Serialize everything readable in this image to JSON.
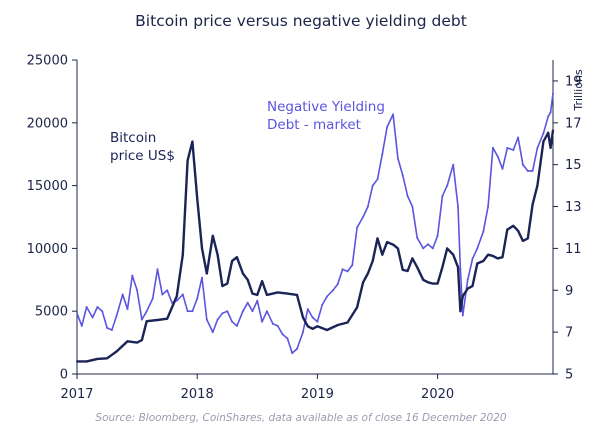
{
  "chart_data": {
    "type": "line",
    "title": "Bitcoin price versus negative yielding debt",
    "source": "Source: Bloomberg, CoinShares, data available as of close 16 December 2020",
    "x_ticks": [
      "2017",
      "2018",
      "2019",
      "2020"
    ],
    "x_range": [
      2017.0,
      2020.96
    ],
    "left_axis": {
      "ticks": [
        "0",
        "5000",
        "10000",
        "15000",
        "20000",
        "25000"
      ],
      "range": [
        0,
        25000
      ]
    },
    "right_axis": {
      "unit_label": "Trillions",
      "ticks": [
        "5",
        "7",
        "9",
        "11",
        "13",
        "15",
        "17",
        "19"
      ],
      "range": [
        5,
        20
      ]
    },
    "colors": {
      "bitcoin": "#1b2456",
      "negative_yielding_debt": "#5b55e0",
      "axis": "#1c2448"
    },
    "series": [
      {
        "key": "bitcoin",
        "name": "Bitcoin price US$",
        "label_lines": [
          "Bitcoin",
          "price US$"
        ],
        "axis": "left",
        "x": [
          2017.0,
          2017.08,
          2017.17,
          2017.25,
          2017.33,
          2017.42,
          2017.5,
          2017.54,
          2017.58,
          2017.67,
          2017.75,
          2017.83,
          2017.88,
          2017.92,
          2017.96,
          2018.0,
          2018.04,
          2018.08,
          2018.13,
          2018.17,
          2018.21,
          2018.25,
          2018.29,
          2018.33,
          2018.38,
          2018.42,
          2018.46,
          2018.5,
          2018.54,
          2018.58,
          2018.67,
          2018.75,
          2018.83,
          2018.88,
          2018.92,
          2018.96,
          2019.0,
          2019.08,
          2019.17,
          2019.25,
          2019.33,
          2019.38,
          2019.42,
          2019.46,
          2019.5,
          2019.54,
          2019.58,
          2019.63,
          2019.67,
          2019.71,
          2019.75,
          2019.79,
          2019.83,
          2019.88,
          2019.92,
          2019.96,
          2020.0,
          2020.04,
          2020.08,
          2020.13,
          2020.17,
          2020.19,
          2020.21,
          2020.25,
          2020.29,
          2020.33,
          2020.38,
          2020.42,
          2020.46,
          2020.5,
          2020.54,
          2020.58,
          2020.63,
          2020.67,
          2020.71,
          2020.75,
          2020.79,
          2020.83,
          2020.88,
          2020.92,
          2020.94,
          2020.96
        ],
        "values": [
          1000,
          1000,
          1200,
          1250,
          1800,
          2600,
          2500,
          2700,
          4200,
          4300,
          4400,
          6200,
          9500,
          17000,
          18500,
          14000,
          10000,
          8000,
          11000,
          9500,
          7000,
          7200,
          9000,
          9300,
          8000,
          7500,
          6400,
          6300,
          7400,
          6300,
          6500,
          6400,
          6300,
          4500,
          3800,
          3600,
          3800,
          3500,
          3900,
          4100,
          5300,
          7300,
          8000,
          9000,
          10800,
          9500,
          10500,
          10300,
          10000,
          8300,
          8200,
          9200,
          8500,
          7500,
          7300,
          7200,
          7200,
          8500,
          10000,
          9500,
          8500,
          5000,
          6200,
          6800,
          7000,
          8800,
          9000,
          9500,
          9400,
          9200,
          9300,
          11500,
          11800,
          11400,
          10600,
          10800,
          13500,
          15000,
          18500,
          19200,
          18000,
          19400
        ]
      },
      {
        "key": "negative_yielding_debt",
        "name": "Negative Yielding Debt - market",
        "label_lines": [
          "Negative Yielding",
          "Debt - market"
        ],
        "axis": "right",
        "x": [
          2017.0,
          2017.04,
          2017.08,
          2017.13,
          2017.17,
          2017.21,
          2017.25,
          2017.29,
          2017.33,
          2017.38,
          2017.42,
          2017.46,
          2017.5,
          2017.54,
          2017.58,
          2017.63,
          2017.67,
          2017.71,
          2017.75,
          2017.79,
          2017.83,
          2017.88,
          2017.92,
          2017.96,
          2018.0,
          2018.04,
          2018.08,
          2018.13,
          2018.17,
          2018.21,
          2018.25,
          2018.29,
          2018.33,
          2018.38,
          2018.42,
          2018.46,
          2018.5,
          2018.54,
          2018.58,
          2018.63,
          2018.67,
          2018.71,
          2018.75,
          2018.79,
          2018.83,
          2018.88,
          2018.92,
          2018.96,
          2019.0,
          2019.04,
          2019.08,
          2019.13,
          2019.17,
          2019.21,
          2019.25,
          2019.29,
          2019.33,
          2019.38,
          2019.42,
          2019.46,
          2019.5,
          2019.54,
          2019.58,
          2019.63,
          2019.67,
          2019.71,
          2019.75,
          2019.79,
          2019.83,
          2019.88,
          2019.92,
          2019.96,
          2020.0,
          2020.04,
          2020.08,
          2020.13,
          2020.17,
          2020.19,
          2020.21,
          2020.25,
          2020.29,
          2020.33,
          2020.38,
          2020.42,
          2020.46,
          2020.5,
          2020.54,
          2020.58,
          2020.63,
          2020.67,
          2020.71,
          2020.75,
          2020.79,
          2020.83,
          2020.88,
          2020.92,
          2020.94,
          2020.96
        ],
        "values": [
          7.9,
          7.3,
          8.2,
          7.7,
          8.2,
          8.0,
          7.2,
          7.1,
          7.8,
          8.8,
          8.1,
          9.7,
          9.0,
          7.6,
          8.0,
          8.6,
          10.0,
          8.8,
          9.0,
          8.4,
          8.5,
          8.8,
          8.0,
          8.0,
          8.6,
          9.6,
          7.6,
          7.0,
          7.6,
          7.9,
          8.0,
          7.5,
          7.3,
          8.0,
          8.4,
          8.0,
          8.5,
          7.5,
          8.0,
          7.4,
          7.3,
          6.9,
          6.7,
          6.0,
          6.2,
          7.0,
          8.1,
          7.7,
          7.5,
          8.3,
          8.7,
          9.0,
          9.3,
          10.0,
          9.9,
          10.2,
          12.0,
          12.5,
          13.0,
          14.0,
          14.3,
          15.5,
          16.8,
          17.4,
          15.3,
          14.5,
          13.5,
          13.0,
          11.5,
          11.0,
          11.2,
          11.0,
          11.6,
          13.5,
          14.0,
          15.0,
          13.0,
          10.0,
          7.8,
          9.5,
          10.5,
          11.0,
          11.8,
          13.0,
          15.8,
          15.4,
          14.8,
          15.8,
          15.7,
          16.3,
          15.0,
          14.7,
          14.7,
          15.8,
          16.5,
          17.3,
          17.5,
          18.4
        ]
      }
    ]
  }
}
